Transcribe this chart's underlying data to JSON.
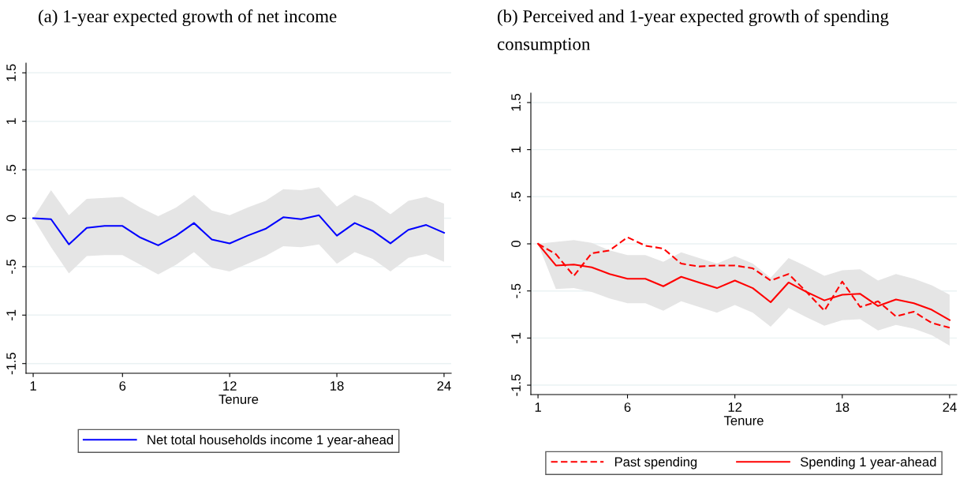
{
  "chart_data": [
    {
      "type": "line",
      "title": "(a) 1-year expected growth of net income",
      "xlabel": "Tenure",
      "x": [
        1,
        2,
        3,
        4,
        5,
        6,
        7,
        8,
        9,
        10,
        11,
        12,
        13,
        14,
        15,
        16,
        17,
        18,
        19,
        20,
        21,
        22,
        23,
        24
      ],
      "series": [
        {
          "name": "Net total households income 1 year-ahead",
          "color": "#0000ff",
          "line_style": "solid",
          "values": [
            0,
            -0.01,
            -0.27,
            -0.1,
            -0.08,
            -0.08,
            -0.2,
            -0.28,
            -0.18,
            -0.05,
            -0.22,
            -0.26,
            -0.18,
            -0.11,
            0.01,
            -0.01,
            0.03,
            -0.18,
            -0.05,
            -0.13,
            -0.26,
            -0.12,
            -0.07,
            -0.15
          ],
          "upper": [
            0,
            0.29,
            0.03,
            0.2,
            0.21,
            0.22,
            0.11,
            0.02,
            0.11,
            0.24,
            0.08,
            0.03,
            0.11,
            0.18,
            0.3,
            0.29,
            0.32,
            0.12,
            0.24,
            0.17,
            0.04,
            0.18,
            0.22,
            0.15
          ],
          "lower": [
            0,
            -0.3,
            -0.57,
            -0.39,
            -0.38,
            -0.38,
            -0.48,
            -0.58,
            -0.48,
            -0.35,
            -0.51,
            -0.55,
            -0.47,
            -0.39,
            -0.29,
            -0.3,
            -0.27,
            -0.47,
            -0.35,
            -0.42,
            -0.55,
            -0.41,
            -0.37,
            -0.45
          ]
        }
      ],
      "xlim": [
        0.6,
        24.4
      ],
      "xticks": [
        1,
        6,
        12,
        18,
        24
      ],
      "ylim": [
        -1.6,
        1.6
      ],
      "yticks": [
        {
          "value": -1.5,
          "label": "-1.5"
        },
        {
          "value": -1,
          "label": "-1"
        },
        {
          "value": -0.5,
          "label": "-.5"
        },
        {
          "value": 0,
          "label": "0"
        },
        {
          "value": 0.5,
          "label": ".5"
        },
        {
          "value": 1,
          "label": "1"
        },
        {
          "value": 1.5,
          "label": "1.5"
        }
      ],
      "grid": "y",
      "legend": "bottom"
    },
    {
      "type": "line",
      "title": "(b) Perceived and 1-year expected growth of spending consumption",
      "xlabel": "Tenure",
      "x": [
        1,
        2,
        3,
        4,
        5,
        6,
        7,
        8,
        9,
        10,
        11,
        12,
        13,
        14,
        15,
        16,
        17,
        18,
        19,
        20,
        21,
        22,
        23,
        24
      ],
      "series": [
        {
          "name": "Past spending",
          "color": "#ff0000",
          "line_style": "dashed",
          "values": [
            0,
            -0.11,
            -0.34,
            -0.1,
            -0.07,
            0.07,
            -0.02,
            -0.05,
            -0.21,
            -0.24,
            -0.23,
            -0.23,
            -0.26,
            -0.39,
            -0.32,
            -0.51,
            -0.71,
            -0.4,
            -0.67,
            -0.61,
            -0.77,
            -0.72,
            -0.84,
            -0.89
          ]
        },
        {
          "name": "Spending 1 year-ahead",
          "color": "#ff0000",
          "line_style": "solid",
          "values": [
            0,
            -0.23,
            -0.22,
            -0.25,
            -0.32,
            -0.37,
            -0.37,
            -0.45,
            -0.35,
            -0.41,
            -0.47,
            -0.39,
            -0.47,
            -0.62,
            -0.41,
            -0.51,
            -0.6,
            -0.54,
            -0.53,
            -0.66,
            -0.59,
            -0.63,
            -0.7,
            -0.81
          ],
          "upper": [
            0,
            0.02,
            0.04,
            0.01,
            -0.07,
            -0.12,
            -0.12,
            -0.19,
            -0.09,
            -0.15,
            -0.21,
            -0.13,
            -0.21,
            -0.36,
            -0.15,
            -0.24,
            -0.34,
            -0.28,
            -0.27,
            -0.39,
            -0.32,
            -0.37,
            -0.44,
            -0.54
          ],
          "lower": [
            0,
            -0.48,
            -0.47,
            -0.51,
            -0.58,
            -0.63,
            -0.63,
            -0.71,
            -0.61,
            -0.67,
            -0.73,
            -0.65,
            -0.73,
            -0.88,
            -0.68,
            -0.78,
            -0.87,
            -0.81,
            -0.8,
            -0.92,
            -0.86,
            -0.9,
            -0.97,
            -1.08
          ]
        }
      ],
      "xlim": [
        0.6,
        24.4
      ],
      "xticks": [
        1,
        6,
        12,
        18,
        24
      ],
      "ylim": [
        -1.6,
        1.6
      ],
      "yticks": [
        {
          "value": -1.5,
          "label": "-1.5"
        },
        {
          "value": -1,
          "label": "-1"
        },
        {
          "value": -0.5,
          "label": "-.5"
        },
        {
          "value": 0,
          "label": "0"
        },
        {
          "value": 0.5,
          "label": ".5"
        },
        {
          "value": 1,
          "label": "1"
        },
        {
          "value": 1.5,
          "label": "1.5"
        }
      ],
      "grid": "y",
      "legend": "bottom"
    }
  ]
}
